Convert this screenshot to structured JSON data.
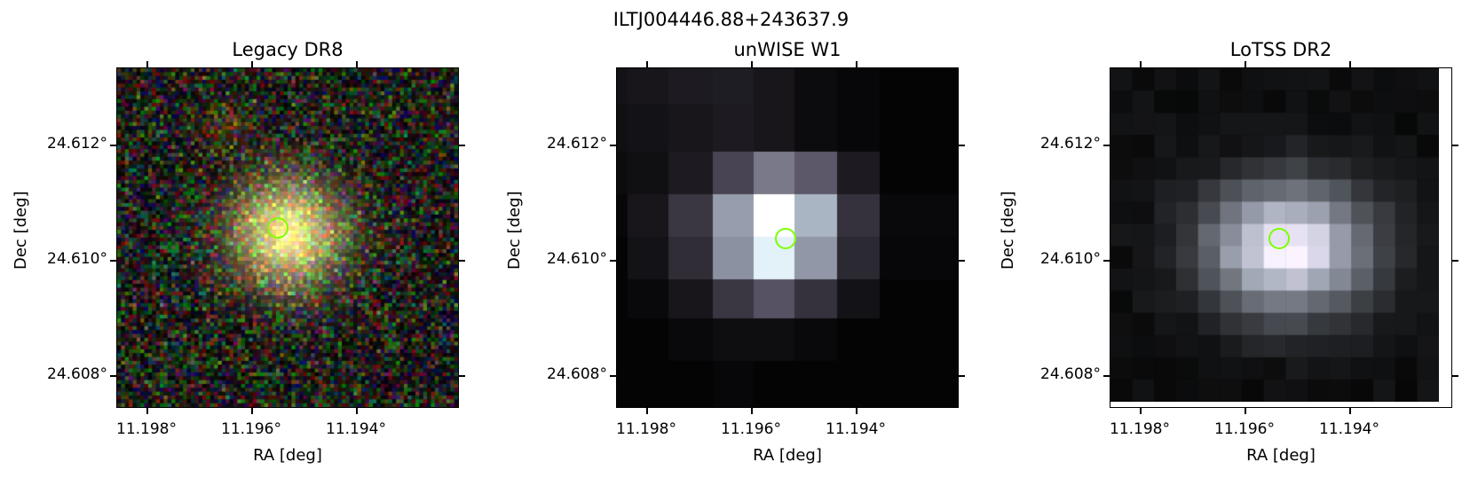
{
  "figure_title": "ILTJ004446.88+243637.9",
  "axis_labels": {
    "x": "RA [deg]",
    "y": "Dec [deg]"
  },
  "x_ticks": [
    "11.198°",
    "11.196°",
    "11.194°"
  ],
  "y_ticks": [
    "24.612°",
    "24.610°",
    "24.608°"
  ],
  "marker_color": "#7cff00",
  "panels": [
    {
      "title": "Legacy DR8",
      "kind": "optical-rgb-cutout"
    },
    {
      "title": "unWISE W1",
      "kind": "infrared-cutout"
    },
    {
      "title": "LoTSS DR2",
      "kind": "radio-cutout"
    }
  ]
}
